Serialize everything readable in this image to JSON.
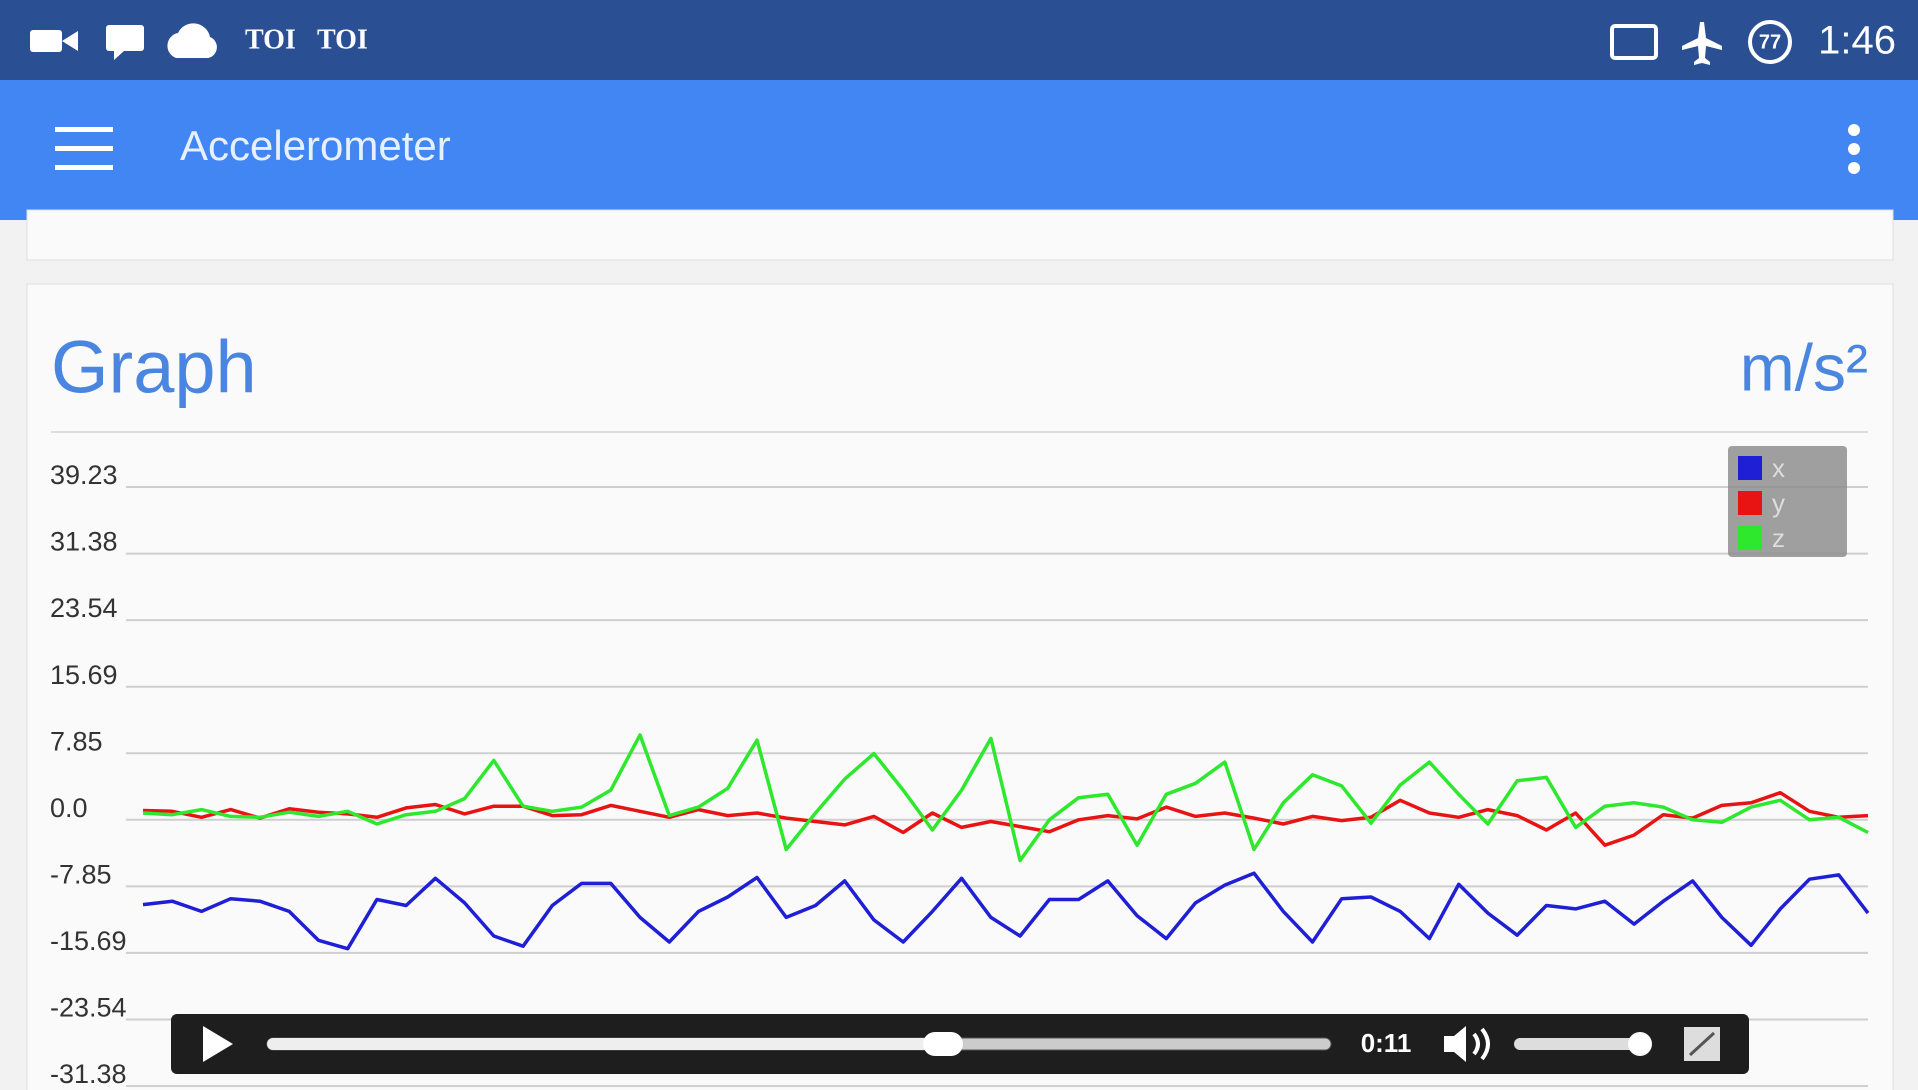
{
  "status_bar": {
    "notifications": [
      "TOI",
      "TOI"
    ],
    "badge": "77",
    "time": "1:46"
  },
  "app_bar": {
    "title": "Accelerometer"
  },
  "chart_data": {
    "type": "line",
    "title": "Graph",
    "unit": "m/s²",
    "ylim": [
      -31.38,
      39.23
    ],
    "yticks": [
      39.23,
      31.38,
      23.54,
      15.69,
      7.85,
      {
        "value": 0,
        "label": "0.0"
      },
      -7.85,
      -15.69,
      -23.54,
      -31.38
    ],
    "grid": true,
    "legend": "upper right",
    "series": [
      {
        "name": "x",
        "color": "#1f1fd6",
        "values": [
          -10,
          -9.6,
          -10.8,
          -9.3,
          -9.6,
          -10.8,
          -14.2,
          -15.2,
          -9.4,
          -10.1,
          -6.9,
          -9.8,
          -13.7,
          -14.9,
          -10.1,
          -7.5,
          -7.5,
          -11.5,
          -14.4,
          -10.8,
          -9.1,
          -6.8,
          -11.5,
          -10.1,
          -7.2,
          -11.8,
          -14.4,
          -10.8,
          -6.9,
          -11.5,
          -13.7,
          -9.4,
          -9.4,
          -7.2,
          -11.3,
          -14.0,
          -9.8,
          -7.7,
          -6.3,
          -10.8,
          -14.4,
          -9.3,
          -9.1,
          -10.8,
          -14.0,
          -7.6,
          -11.0,
          -13.6,
          -10.1,
          -10.5,
          -9.6,
          -12.3,
          -9.6,
          -7.2,
          -11.5,
          -14.8,
          -10.5,
          -7.0,
          -6.5,
          -11.0
        ]
      },
      {
        "name": "y",
        "color": "#e81414",
        "values": [
          1.1,
          1.0,
          0.3,
          1.2,
          0.2,
          1.3,
          0.9,
          0.7,
          0.3,
          1.4,
          1.8,
          0.7,
          1.6,
          1.6,
          0.5,
          0.6,
          1.7,
          1.0,
          0.3,
          1.2,
          0.5,
          0.8,
          0.2,
          -0.2,
          -0.6,
          0.4,
          -1.5,
          0.8,
          -0.9,
          -0.2,
          -0.8,
          -1.4,
          0.0,
          0.5,
          0.1,
          1.5,
          0.4,
          0.8,
          0.2,
          -0.5,
          0.4,
          -0.1,
          0.3,
          2.3,
          0.8,
          0.3,
          1.2,
          0.5,
          -1.2,
          0.8,
          -3.0,
          -1.8,
          0.6,
          0.2,
          1.7,
          2.0,
          3.2,
          1.0,
          0.3,
          0.5
        ]
      },
      {
        "name": "z",
        "color": "#2de82d",
        "values": [
          0.8,
          0.6,
          1.2,
          0.4,
          0.3,
          0.9,
          0.4,
          1.0,
          -0.5,
          0.6,
          1.0,
          2.5,
          7.0,
          1.6,
          1.0,
          1.5,
          3.5,
          10.0,
          0.5,
          1.5,
          3.7,
          9.4,
          -3.5,
          0.8,
          4.8,
          7.8,
          3.5,
          -1.2,
          3.5,
          9.6,
          -4.8,
          0.0,
          2.6,
          3.0,
          -3.0,
          3.0,
          4.3,
          6.8,
          -3.5,
          2.0,
          5.3,
          4.0,
          -0.4,
          4.1,
          6.8,
          3.0,
          -0.5,
          4.6,
          5.0,
          -0.9,
          1.6,
          2.0,
          1.5,
          0.0,
          -0.3,
          1.5,
          2.3,
          0.0,
          0.3,
          -1.5
        ]
      }
    ]
  },
  "video_player": {
    "time": "0:11"
  }
}
